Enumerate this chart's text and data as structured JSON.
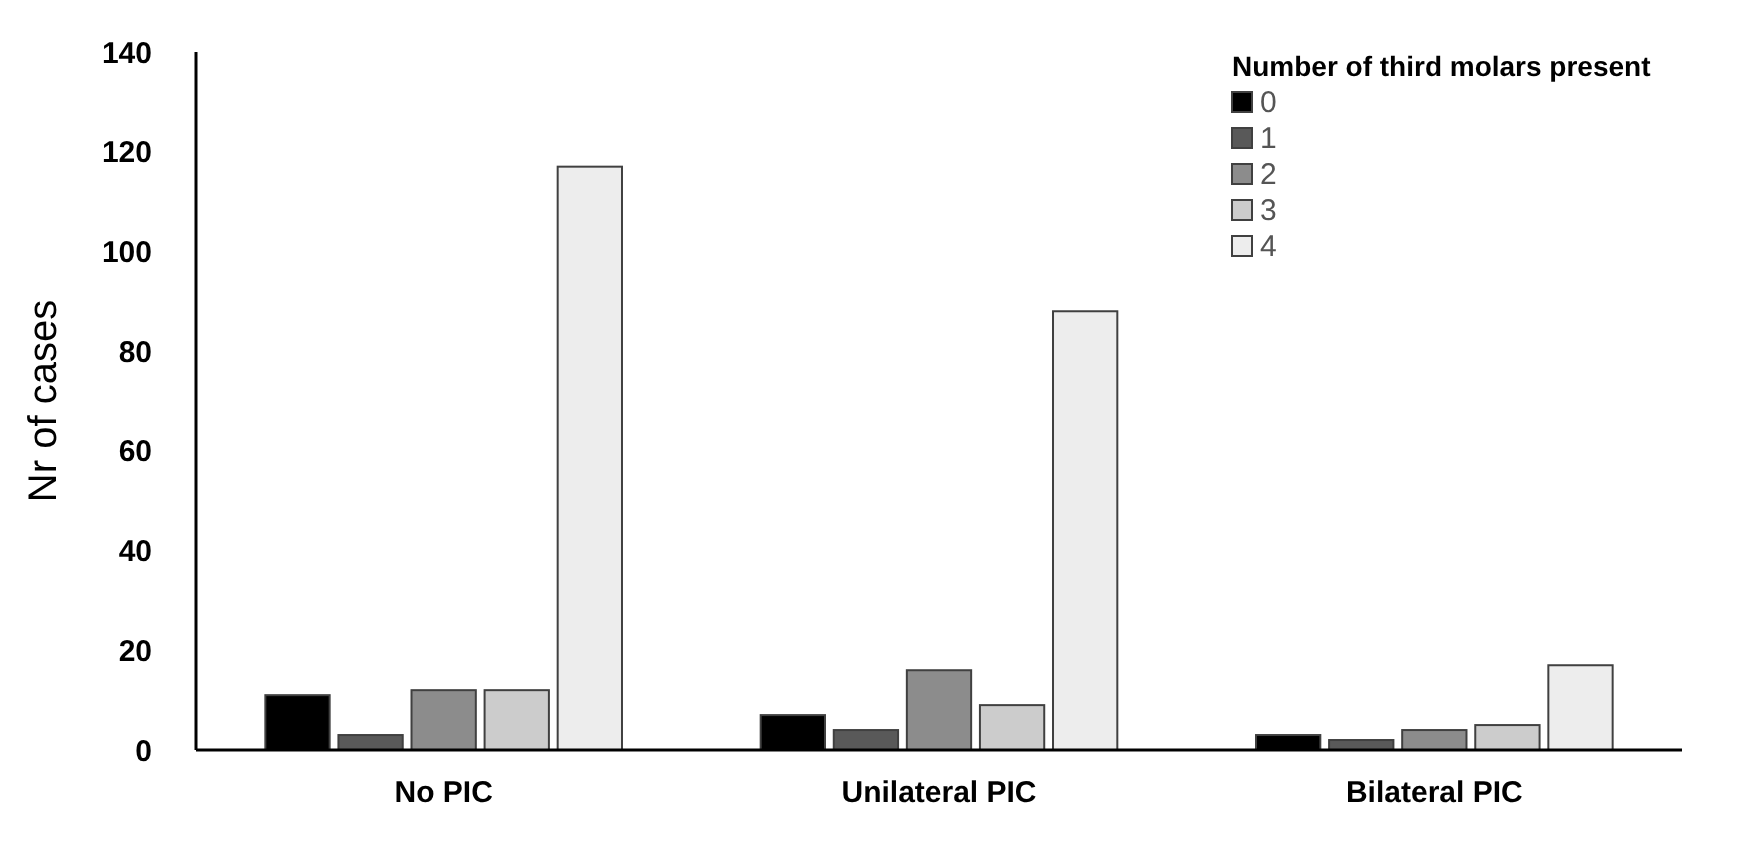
{
  "chart_data": {
    "type": "bar",
    "ylabel": "Nr of cases",
    "legend_title": "Number of third molars present",
    "categories": [
      "No PIC",
      "Unilateral PIC",
      "Bilateral PIC"
    ],
    "series": [
      {
        "name": "0",
        "color": "#000000",
        "values": [
          11,
          7,
          3
        ]
      },
      {
        "name": "1",
        "color": "#595959",
        "values": [
          3,
          4,
          2
        ]
      },
      {
        "name": "2",
        "color": "#8c8c8c",
        "values": [
          12,
          16,
          4
        ]
      },
      {
        "name": "3",
        "color": "#cccccc",
        "values": [
          12,
          9,
          5
        ]
      },
      {
        "name": "4",
        "color": "#ededed",
        "values": [
          117,
          88,
          17
        ]
      }
    ],
    "ylim": [
      0,
      140
    ],
    "yticks": [
      0,
      20,
      40,
      60,
      80,
      100,
      120,
      140
    ],
    "grid": false,
    "legend": "top right"
  }
}
